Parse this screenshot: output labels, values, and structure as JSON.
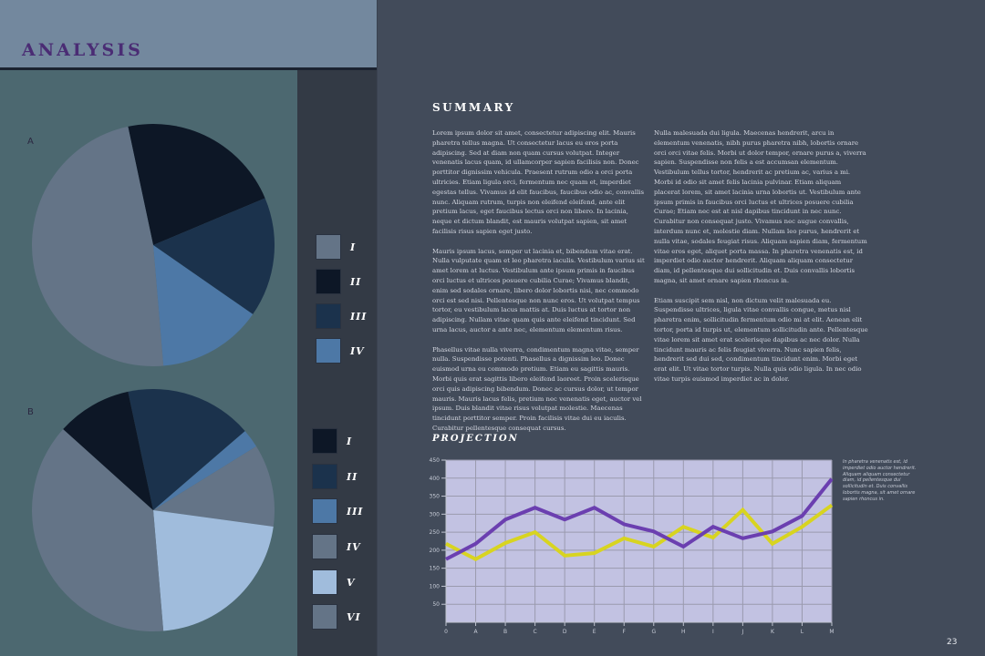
{
  "header": {
    "title": "ANALYSIS"
  },
  "summary": {
    "title": "SUMMARY",
    "column1": [
      "Lorem ipsum dolor sit amet, consectetur adipiscing elit. Mauris pharetra tellus magna. Ut consectetur lacus eu eros porta adipiscing. Sed at diam non quam cursus volutpat. Integer venenatis lacus quam, id ullamcorper sapien facilisis non. Donec porttitor dignissim vehicula. Praesent rutrum odio a orci porta ultricies. Etiam ligula orci, fermentum nec quam et, imperdiet egestas tellus. Vivamus id elit faucibus, faucibus odio ac, convallis nunc. Aliquam rutrum, turpis non eleifend eleifend, ante elit pretium lacus, eget faucibus lectus orci non libero. In lacinia, neque et dictum blandit, est mauris volutpat sapien, sit amet facilisis risus sapien eget justo.",
      "Mauris ipsum lacus, semper ut lacinia et, bibendum vitae erat. Nulla vulputate quam et leo pharetra iaculis. Vestibulum varius sit amet lorem at luctus. Vestibulum ante ipsum primis in faucibus orci luctus et ultrices posuere cubilia Curae; Vivamus blandit, enim sed sodales ornare, libero dolor lobortis nisi, nec commodo orci est sed nisi. Pellentesque non nunc eros. Ut volutpat tempus tortor, eu vestibulum lacus mattis at. Duis luctus at tortor non adipiscing. Nullam vitae quam quis ante eleifend tincidunt. Sed urna lacus, auctor a ante nec, elementum elementum risus.",
      "Phasellus vitae nulla viverra, condimentum magna vitae, semper nulla. Suspendisse potenti. Phasellus a dignissim leo. Donec euismod urna eu commodo pretium. Etiam eu sagittis mauris. Morbi quis erat sagittis libero eleifend laoreet. Proin scelerisque orci quis adipiscing bibendum. Donec ac cursus dolor, ut tempor mauris. Mauris lacus felis, pretium nec venenatis eget, auctor vel ipsum. Duis blandit vitae risus volutpat molestie. Maecenas tincidunt porttitor semper. Proin facilisis vitae dui eu iaculis. Curabitur pellentesque consequat cursus."
    ],
    "column2": [
      "Nulla malesuada dui ligula. Maecenas hendrerit, arcu in elementum venenatis, nibh purus pharetra nibh, lobortis ornare orci orci vitae felis. Morbi ut dolor tempor, ornare purus a, viverra sapien. Suspendisse non felis a est accumsan elementum. Vestibulum tellus tortor, hendrerit ac pretium ac, varius a mi. Morbi id odio sit amet felis lacinia pulvinar. Etiam aliquam placerat lorem, sit amet lacinia urna lobortis ut. Vestibulum ante ipsum primis in faucibus orci luctus et ultrices posuere cubilia Curae; Etiam nec est at nisl dapibus tincidunt in nec nunc. Curabitur non consequat justo. Vivamus nec augue convallis, interdum nunc et, molestie diam. Nullam leo purus, hendrerit et nulla vitae, sodales feugiat risus. Aliquam sapien diam, fermentum vitae eros eget, aliquet porta massa. In pharetra venenatis est, id imperdiet odio auctor hendrerit. Aliquam aliquam consectetur diam, id pellentesque dui sollicitudin et. Duis convallis lobortis magna, sit amet ornare sapien rhoncus in.",
      "Etiam suscipit sem nisl, non dictum velit malesuada eu. Suspendisse ultrices, ligula vitae convallis congue, metus nisl pharetra enim, sollicitudin fermentum odio mi at elit. Aenean elit tortor, porta id turpis ut, elementum sollicitudin ante. Pellentesque vitae lorem sit amet erat scelerisque dapibus ac nec dolor. Nulla tincidunt mauris ac felis feugiat viverra. Nunc sapien felis, hendrerit sed dui sed, condimentum tincidunt enim. Morbi eget erat elit. Ut vitae tortor turpis. Nulla quis odio ligula. In nec odio vitae turpis euismod imperdiet ac in dolor."
    ]
  },
  "projection": {
    "title": "PROJECTION",
    "side_note": "In pharetra venenatis est, id imperdiet odio auctor hendrerit. Aliquam aliquam consectetur diam, id pellentesque dui sollicitudin et. Duis convallis lobortis magna, sit amet ornare sapien rhoncus in."
  },
  "page_number": "23",
  "colors": {
    "title_purple": "#4a2c74",
    "pie_slate": "#647487",
    "pie_navy_dark": "#0d1726",
    "pie_navy": "#1b324c",
    "pie_blue": "#4d78a6",
    "pie_light_blue": "#a0bcdc",
    "line_purple": "#6b3fb0",
    "line_yellow": "#d8d420",
    "plot_bg": "#c2c2e2"
  },
  "chart_data": [
    {
      "type": "pie",
      "title": "A",
      "categories": [
        "I",
        "II",
        "III",
        "IV"
      ],
      "values": [
        48,
        22,
        16,
        14
      ],
      "colors": [
        "#647487",
        "#0d1726",
        "#1b324c",
        "#4d78a6"
      ]
    },
    {
      "type": "pie",
      "title": "B",
      "categories": [
        "I",
        "II",
        "III",
        "IV",
        "V",
        "VI"
      ],
      "values": [
        10,
        17,
        2.5,
        11,
        21.5,
        38
      ],
      "colors": [
        "#0d1726",
        "#1b324c",
        "#4d78a6",
        "#647487",
        "#a0bcdc",
        "#647487"
      ]
    },
    {
      "type": "line",
      "title": "PROJECTION",
      "categories": [
        "0",
        "A",
        "B",
        "C",
        "D",
        "E",
        "F",
        "G",
        "H",
        "I",
        "J",
        "K",
        "L",
        "M"
      ],
      "series": [
        {
          "name": "purple",
          "color": "#6b3fb0",
          "values": [
            175,
            218,
            285,
            318,
            285,
            318,
            272,
            252,
            210,
            265,
            233,
            252,
            295,
            398
          ]
        },
        {
          "name": "yellow",
          "color": "#d8d420",
          "values": [
            218,
            175,
            220,
            250,
            185,
            192,
            233,
            210,
            265,
            235,
            312,
            218,
            265,
            325
          ]
        }
      ],
      "yticks": [
        50,
        100,
        150,
        200,
        250,
        300,
        350,
        400,
        450
      ],
      "ylim": [
        0,
        450
      ],
      "grid": true,
      "xlabel": "",
      "ylabel": ""
    }
  ]
}
